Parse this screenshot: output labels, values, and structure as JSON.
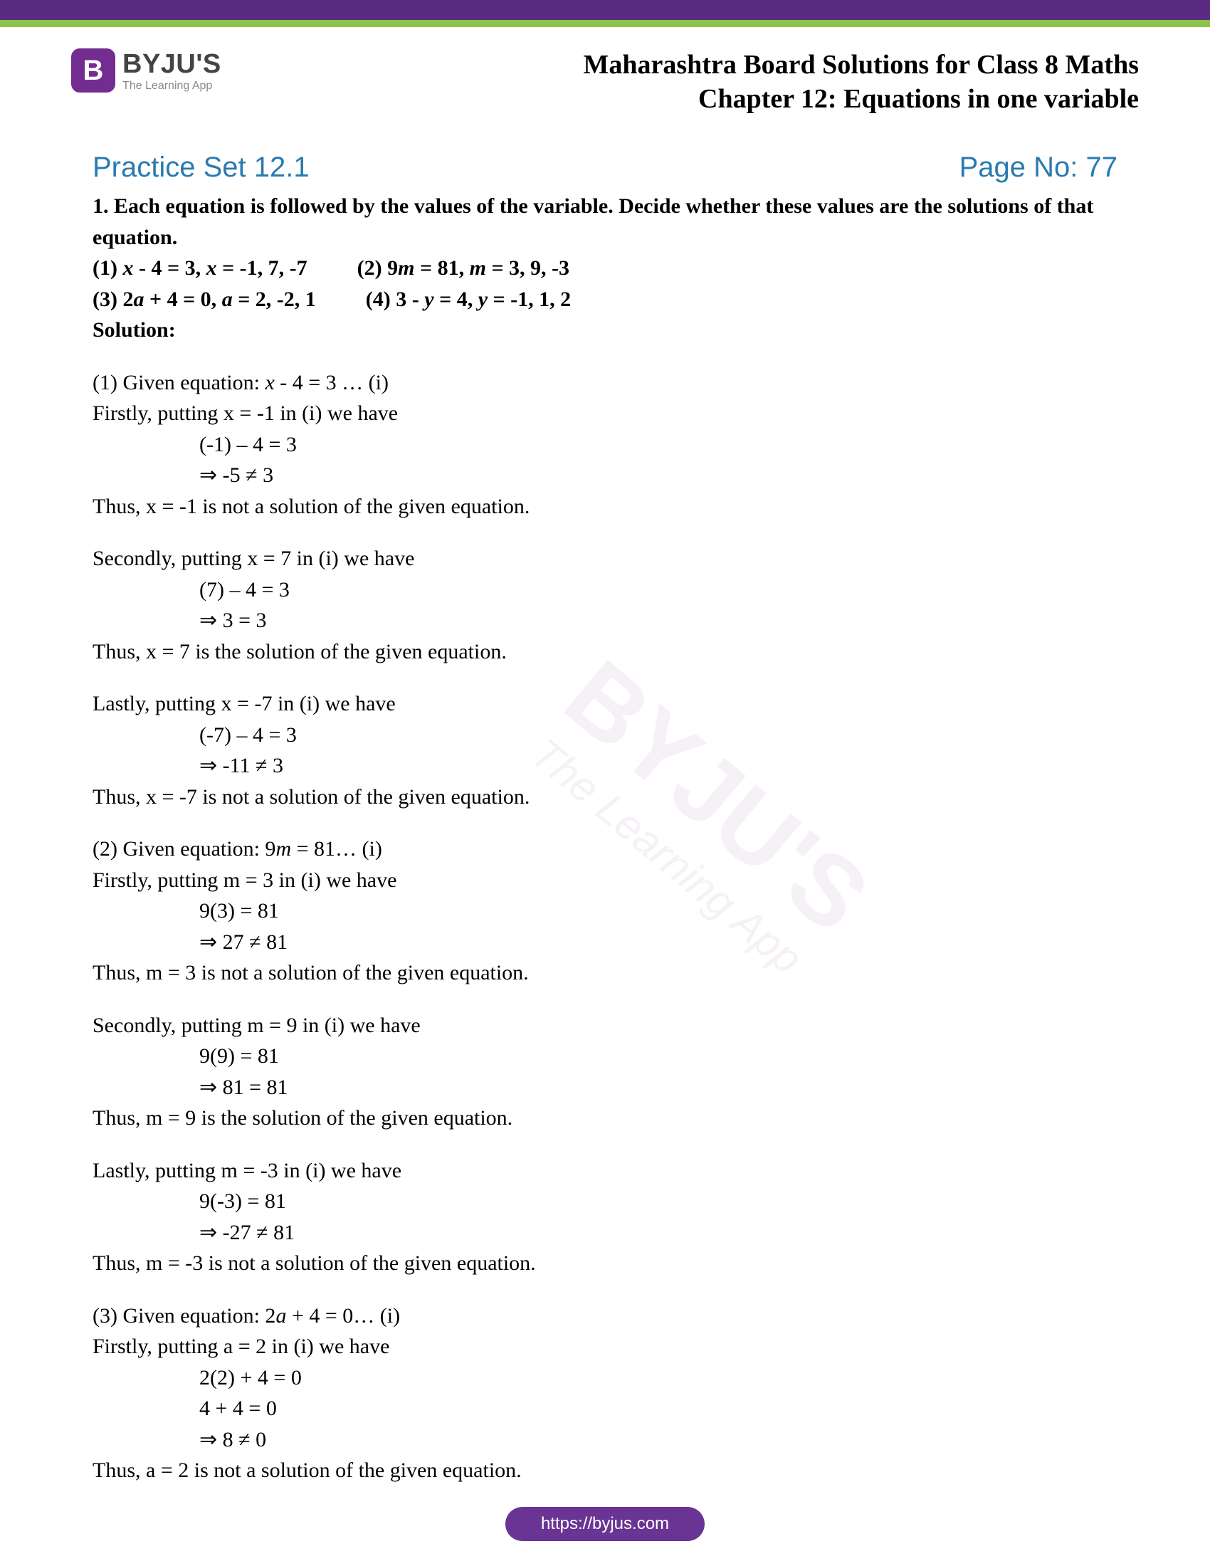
{
  "branding": {
    "logo_letter": "B",
    "name": "BYJU'S",
    "tagline": "The Learning App"
  },
  "header": {
    "line1": "Maharashtra Board Solutions for Class 8 Maths",
    "line2": "Chapter 12: Equations in one variable"
  },
  "section": {
    "practice": "Practice Set 12.1",
    "page_no": "Page No: 77"
  },
  "question": {
    "intro": "1. Each equation is followed by the values of the variable. Decide whether these values are the solutions of that equation.",
    "opt1_label": "(1) ",
    "opt1_eq_a": "x",
    "opt1_eq_b": " - 4 = 3, ",
    "opt1_eq_c": "x",
    "opt1_eq_d": " = -1, 7, -7",
    "opt2_label": "(2) 9",
    "opt2_eq_a": "m",
    "opt2_eq_b": " = 81, ",
    "opt2_eq_c": "m",
    "opt2_eq_d": " = 3, 9, -3",
    "opt3_label": "(3) 2",
    "opt3_eq_a": "a",
    "opt3_eq_b": " + 4 = 0, ",
    "opt3_eq_c": "a",
    "opt3_eq_d": " = 2, -2, 1",
    "opt4_label": "(4) 3 - ",
    "opt4_eq_a": "y",
    "opt4_eq_b": " = 4, ",
    "opt4_eq_c": "y",
    "opt4_eq_d": " = -1, 1, 2",
    "solution_label": "Solution:"
  },
  "sol": {
    "p1a": "(1) Given equation: ",
    "p1b": "x",
    "p1c": " - 4 = 3 … (i)",
    "p2": "Firstly, putting x = -1 in (i) we have",
    "p3": "(-1) – 4 = 3",
    "p4": "⇒ -5 ≠ 3",
    "p5": "Thus, x = -1 is not a solution of the given equation.",
    "p6": "Secondly, putting x = 7 in (i) we have",
    "p7": "(7) – 4 = 3",
    "p8": "⇒ 3 = 3",
    "p9": "Thus, x = 7 is the solution of the given equation.",
    "p10": "Lastly, putting x = -7 in (i) we have",
    "p11": "(-7) – 4 = 3",
    "p12": "⇒ -11 ≠ 3",
    "p13": "Thus, x = -7 is not a solution of the given equation.",
    "p14a": "(2) Given equation: 9",
    "p14b": "m",
    "p14c": " = 81… (i)",
    "p15": "Firstly, putting m = 3 in (i) we have",
    "p16": "9(3) = 81",
    "p17": "⇒ 27 ≠ 81",
    "p18": "Thus, m = 3 is not a solution of the given equation.",
    "p19": "Secondly, putting m = 9 in (i) we have",
    "p20": "9(9) = 81",
    "p21": "⇒ 81 = 81",
    "p22": "Thus, m = 9 is the solution of the given equation.",
    "p23": "Lastly, putting m = -3 in (i) we have",
    "p24": "9(-3) = 81",
    "p25": "⇒ -27 ≠ 81",
    "p26": "Thus, m = -3 is not a solution of the given equation.",
    "p27a": "(3) Given equation: 2",
    "p27b": "a",
    "p27c": " + 4 = 0… (i)",
    "p28": "Firstly, putting a = 2 in (i) we have",
    "p29": "2(2) + 4 = 0",
    "p30": "4 + 4 = 0",
    "p31": "⇒ 8 ≠ 0",
    "p32": "Thus, a = 2 is not a solution of the given equation."
  },
  "footer": {
    "url": "https://byjus.com"
  },
  "watermark": {
    "main": "BYJU'S",
    "sub": "The Learning App"
  },
  "colors": {
    "top_bar": "#592c82",
    "green_bar": "#8bc34a",
    "heading_blue": "#2a7ab0",
    "logo_purple": "#732d91",
    "footer_purple": "#6a3494"
  }
}
